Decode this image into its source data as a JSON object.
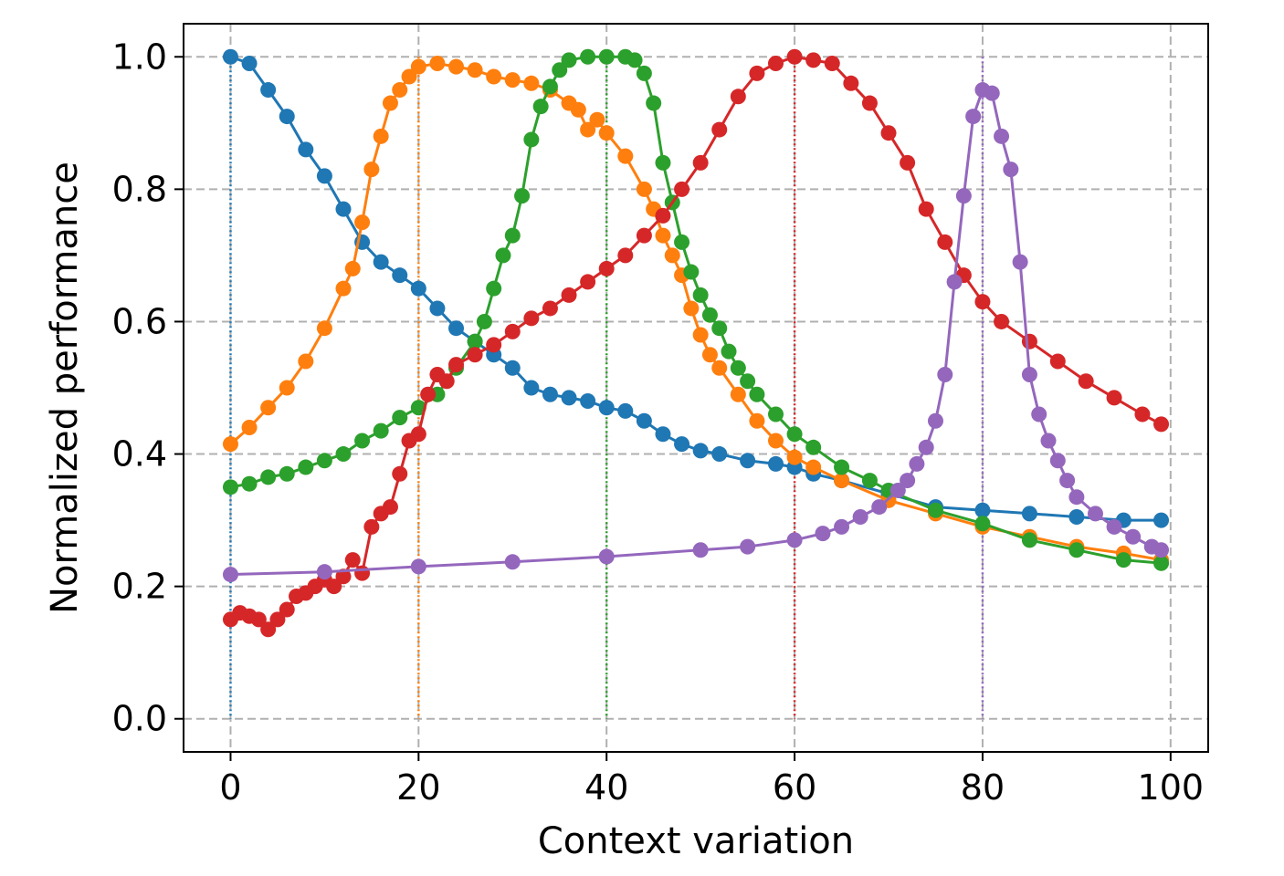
{
  "chart_data": {
    "type": "line",
    "title": "",
    "xlabel": "Context variation",
    "ylabel": "Normalized performance",
    "xlim": [
      -5,
      104
    ],
    "ylim": [
      -0.05,
      1.05
    ],
    "xticks": [
      0,
      20,
      40,
      60,
      80,
      100
    ],
    "yticks": [
      0.0,
      0.2,
      0.4,
      0.6,
      0.8,
      1.0
    ],
    "xtick_labels": [
      "0",
      "20",
      "40",
      "60",
      "80",
      "100"
    ],
    "ytick_labels": [
      "0.0",
      "0.2",
      "0.4",
      "0.6",
      "0.8",
      "1.0"
    ],
    "grid": true,
    "grid_style": "dashed",
    "markers": true,
    "series": [
      {
        "color": "#1f77b4",
        "peak_x": 0,
        "points": [
          [
            0,
            1.0
          ],
          [
            2,
            0.99
          ],
          [
            4,
            0.95
          ],
          [
            6,
            0.91
          ],
          [
            8,
            0.86
          ],
          [
            10,
            0.82
          ],
          [
            12,
            0.77
          ],
          [
            14,
            0.72
          ],
          [
            16,
            0.69
          ],
          [
            18,
            0.67
          ],
          [
            20,
            0.65
          ],
          [
            22,
            0.62
          ],
          [
            24,
            0.59
          ],
          [
            26,
            0.57
          ],
          [
            28,
            0.55
          ],
          [
            30,
            0.53
          ],
          [
            32,
            0.5
          ],
          [
            34,
            0.49
          ],
          [
            36,
            0.485
          ],
          [
            38,
            0.48
          ],
          [
            40,
            0.47
          ],
          [
            42,
            0.465
          ],
          [
            44,
            0.45
          ],
          [
            46,
            0.43
          ],
          [
            48,
            0.415
          ],
          [
            50,
            0.405
          ],
          [
            52,
            0.4
          ],
          [
            55,
            0.39
          ],
          [
            58,
            0.385
          ],
          [
            60,
            0.38
          ],
          [
            62,
            0.37
          ],
          [
            65,
            0.36
          ],
          [
            70,
            0.34
          ],
          [
            75,
            0.32
          ],
          [
            80,
            0.315
          ],
          [
            85,
            0.31
          ],
          [
            90,
            0.305
          ],
          [
            95,
            0.3
          ],
          [
            99,
            0.3
          ]
        ]
      },
      {
        "color": "#ff7f0e",
        "peak_x": 20,
        "points": [
          [
            0,
            0.415
          ],
          [
            2,
            0.44
          ],
          [
            4,
            0.47
          ],
          [
            6,
            0.5
          ],
          [
            8,
            0.54
          ],
          [
            10,
            0.59
          ],
          [
            12,
            0.65
          ],
          [
            13,
            0.68
          ],
          [
            14,
            0.75
          ],
          [
            15,
            0.83
          ],
          [
            16,
            0.88
          ],
          [
            17,
            0.93
          ],
          [
            18,
            0.95
          ],
          [
            19,
            0.97
          ],
          [
            20,
            0.985
          ],
          [
            22,
            0.99
          ],
          [
            24,
            0.985
          ],
          [
            26,
            0.98
          ],
          [
            28,
            0.97
          ],
          [
            30,
            0.965
          ],
          [
            32,
            0.96
          ],
          [
            34,
            0.95
          ],
          [
            36,
            0.93
          ],
          [
            37,
            0.92
          ],
          [
            38,
            0.89
          ],
          [
            39,
            0.905
          ],
          [
            40,
            0.885
          ],
          [
            42,
            0.85
          ],
          [
            44,
            0.8
          ],
          [
            45,
            0.77
          ],
          [
            46,
            0.73
          ],
          [
            47,
            0.7
          ],
          [
            48,
            0.67
          ],
          [
            49,
            0.62
          ],
          [
            50,
            0.58
          ],
          [
            51,
            0.55
          ],
          [
            52,
            0.53
          ],
          [
            54,
            0.49
          ],
          [
            56,
            0.45
          ],
          [
            58,
            0.42
          ],
          [
            60,
            0.395
          ],
          [
            62,
            0.38
          ],
          [
            65,
            0.36
          ],
          [
            70,
            0.33
          ],
          [
            75,
            0.31
          ],
          [
            80,
            0.29
          ],
          [
            85,
            0.275
          ],
          [
            90,
            0.26
          ],
          [
            95,
            0.25
          ],
          [
            99,
            0.24
          ]
        ]
      },
      {
        "color": "#2ca02c",
        "peak_x": 40,
        "points": [
          [
            0,
            0.35
          ],
          [
            2,
            0.355
          ],
          [
            4,
            0.365
          ],
          [
            6,
            0.37
          ],
          [
            8,
            0.38
          ],
          [
            10,
            0.39
          ],
          [
            12,
            0.4
          ],
          [
            14,
            0.42
          ],
          [
            16,
            0.435
          ],
          [
            18,
            0.455
          ],
          [
            20,
            0.47
          ],
          [
            22,
            0.49
          ],
          [
            24,
            0.53
          ],
          [
            26,
            0.57
          ],
          [
            27,
            0.6
          ],
          [
            28,
            0.65
          ],
          [
            29,
            0.7
          ],
          [
            30,
            0.73
          ],
          [
            31,
            0.79
          ],
          [
            32,
            0.875
          ],
          [
            33,
            0.925
          ],
          [
            34,
            0.955
          ],
          [
            35,
            0.98
          ],
          [
            36,
            0.995
          ],
          [
            38,
            1.0
          ],
          [
            40,
            1.0
          ],
          [
            42,
            1.0
          ],
          [
            43,
            0.995
          ],
          [
            44,
            0.975
          ],
          [
            45,
            0.93
          ],
          [
            46,
            0.84
          ],
          [
            47,
            0.78
          ],
          [
            48,
            0.72
          ],
          [
            49,
            0.675
          ],
          [
            50,
            0.64
          ],
          [
            51,
            0.61
          ],
          [
            52,
            0.59
          ],
          [
            53,
            0.555
          ],
          [
            54,
            0.53
          ],
          [
            55,
            0.51
          ],
          [
            56,
            0.49
          ],
          [
            58,
            0.46
          ],
          [
            60,
            0.43
          ],
          [
            62,
            0.41
          ],
          [
            65,
            0.38
          ],
          [
            68,
            0.36
          ],
          [
            70,
            0.345
          ],
          [
            75,
            0.315
          ],
          [
            80,
            0.295
          ],
          [
            85,
            0.27
          ],
          [
            90,
            0.255
          ],
          [
            95,
            0.24
          ],
          [
            99,
            0.235
          ]
        ]
      },
      {
        "color": "#d62728",
        "peak_x": 60,
        "points": [
          [
            0,
            0.15
          ],
          [
            1,
            0.16
          ],
          [
            2,
            0.155
          ],
          [
            3,
            0.15
          ],
          [
            4,
            0.135
          ],
          [
            5,
            0.15
          ],
          [
            6,
            0.165
          ],
          [
            7,
            0.185
          ],
          [
            8,
            0.19
          ],
          [
            9,
            0.2
          ],
          [
            10,
            0.21
          ],
          [
            11,
            0.2
          ],
          [
            12,
            0.215
          ],
          [
            13,
            0.24
          ],
          [
            14,
            0.22
          ],
          [
            15,
            0.29
          ],
          [
            16,
            0.31
          ],
          [
            17,
            0.32
          ],
          [
            18,
            0.37
          ],
          [
            19,
            0.42
          ],
          [
            20,
            0.43
          ],
          [
            21,
            0.49
          ],
          [
            22,
            0.52
          ],
          [
            23,
            0.51
          ],
          [
            24,
            0.535
          ],
          [
            26,
            0.55
          ],
          [
            28,
            0.565
          ],
          [
            30,
            0.585
          ],
          [
            32,
            0.605
          ],
          [
            34,
            0.62
          ],
          [
            36,
            0.64
          ],
          [
            38,
            0.66
          ],
          [
            40,
            0.68
          ],
          [
            42,
            0.7
          ],
          [
            44,
            0.73
          ],
          [
            46,
            0.76
          ],
          [
            48,
            0.8
          ],
          [
            50,
            0.84
          ],
          [
            52,
            0.89
          ],
          [
            54,
            0.94
          ],
          [
            56,
            0.975
          ],
          [
            58,
            0.99
          ],
          [
            60,
            1.0
          ],
          [
            62,
            0.995
          ],
          [
            64,
            0.99
          ],
          [
            66,
            0.96
          ],
          [
            68,
            0.93
          ],
          [
            70,
            0.885
          ],
          [
            72,
            0.84
          ],
          [
            74,
            0.77
          ],
          [
            76,
            0.72
          ],
          [
            78,
            0.67
          ],
          [
            80,
            0.63
          ],
          [
            82,
            0.6
          ],
          [
            85,
            0.57
          ],
          [
            88,
            0.54
          ],
          [
            91,
            0.51
          ],
          [
            94,
            0.485
          ],
          [
            97,
            0.46
          ],
          [
            99,
            0.445
          ]
        ]
      },
      {
        "color": "#9467bd",
        "peak_x": 80,
        "points": [
          [
            0,
            0.218
          ],
          [
            10,
            0.222
          ],
          [
            20,
            0.23
          ],
          [
            30,
            0.237
          ],
          [
            40,
            0.245
          ],
          [
            50,
            0.255
          ],
          [
            55,
            0.26
          ],
          [
            60,
            0.27
          ],
          [
            63,
            0.28
          ],
          [
            65,
            0.29
          ],
          [
            67,
            0.305
          ],
          [
            69,
            0.32
          ],
          [
            71,
            0.345
          ],
          [
            72,
            0.36
          ],
          [
            73,
            0.385
          ],
          [
            74,
            0.41
          ],
          [
            75,
            0.45
          ],
          [
            76,
            0.52
          ],
          [
            77,
            0.66
          ],
          [
            78,
            0.79
          ],
          [
            79,
            0.91
          ],
          [
            80,
            0.95
          ],
          [
            81,
            0.945
          ],
          [
            82,
            0.88
          ],
          [
            83,
            0.83
          ],
          [
            84,
            0.69
          ],
          [
            85,
            0.52
          ],
          [
            86,
            0.46
          ],
          [
            87,
            0.42
          ],
          [
            88,
            0.39
          ],
          [
            89,
            0.36
          ],
          [
            90,
            0.335
          ],
          [
            92,
            0.31
          ],
          [
            94,
            0.29
          ],
          [
            96,
            0.275
          ],
          [
            98,
            0.26
          ],
          [
            99,
            0.255
          ]
        ]
      }
    ]
  }
}
